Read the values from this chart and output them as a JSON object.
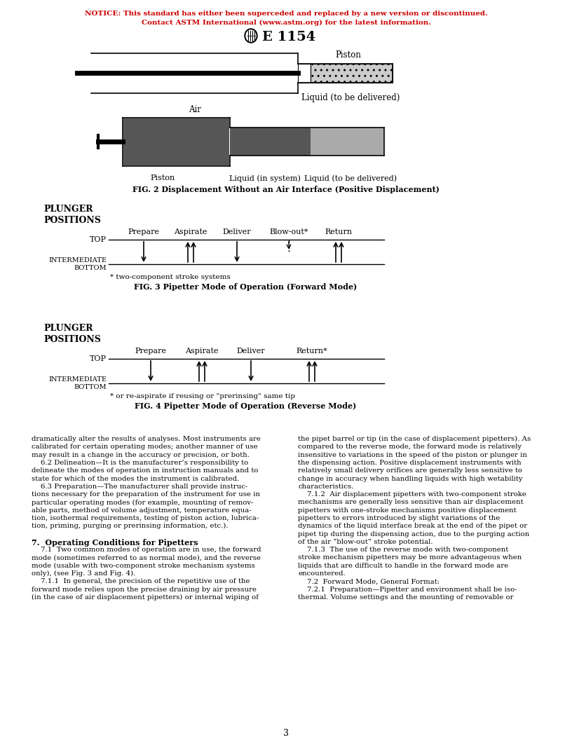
{
  "notice_line1": "NOTICE: This standard has either been superceded and replaced by a new version or discontinued.",
  "notice_line2": "Contact ASTM International (www.astm.org) for the latest information.",
  "notice_color": "#cc0000",
  "title": "E 1154",
  "fig1_label_piston": "Piston",
  "fig1_label_liquid": "Liquid (to be delivered)",
  "fig2_label_air": "Air",
  "fig2_label_piston": "Piston",
  "fig2_label_liquid_sys": "Liquid (in system)",
  "fig2_label_liquid_del": "Liquid (to be delivered)",
  "fig2_caption": "FIG. 2 Displacement Without an Air Interface (Positive Displacement)",
  "fig3_title": "PLUNGER\nPOSITIONS",
  "fig3_caption": "FIG. 3 Pipetter Mode of Operation (Forward Mode)",
  "fig3_steps": [
    "Prepare",
    "Aspirate",
    "Deliver",
    "Blow-out*",
    "Return"
  ],
  "fig3_note": "* two-component stroke systems",
  "fig4_title": "PLUNGER\nPOSITIONS",
  "fig4_caption": "FIG. 4 Pipetter Mode of Operation (Reverse Mode)",
  "fig4_steps": [
    "Prepare",
    "Aspirate",
    "Deliver",
    "Return*"
  ],
  "fig4_note": "* or re-aspirate if reusing or \"prerinsing\" same tip",
  "body_text_col1": [
    "dramatically alter the results of analyses. Most instruments are",
    "calibrated for certain operating modes; another manner of use",
    "may result in a change in the accuracy or precision, or both.",
    "    6.2 Delineation—It is the manufacturer’s responsibility to",
    "delineate the modes of operation in instruction manuals and to",
    "state for which of the modes the instrument is calibrated.",
    "    6.3 Preparation—The manufacturer shall provide instruc-",
    "tions necessary for the preparation of the instrument for use in",
    "particular operating modes (for example, mounting of remov-",
    "able parts, method of volume adjustment, temperature equa-",
    "tion, isothermal requirements, testing of piston action, lubrica-",
    "tion, priming, purging or prerinsing information, etc.).",
    "",
    "7.  Operating Conditions for Pipetters",
    "    7.1  Two common modes of operation are in use, the forward",
    "mode (sometimes referred to as normal mode), and the reverse",
    "mode (usable with two-component stroke mechanism systems",
    "only), (see Fig. 3 and Fig. 4).",
    "    7.1.1  In general, the precision of the repetitive use of the",
    "forward mode relies upon the precise draining by air pressure",
    "(in the case of air displacement pipetters) or internal wiping of"
  ],
  "body_text_col2": [
    "the pipet barrel or tip (in the case of displacement pipetters). As",
    "compared to the reverse mode, the forward mode is relatively",
    "insensitive to variations in the speed of the piston or plunger in",
    "the dispensing action. Positive displacement instruments with",
    "relatively small delivery orifices are generally less sensitive to",
    "change in accuracy when handling liquids with high wetability",
    "characteristics.",
    "    7.1.2  Air displacement pipetters with two-component stroke",
    "mechanisms are generally less sensitive than air displacement",
    "pipetters with one-stroke mechanisms positive displacement",
    "pipetters to errors introduced by slight variations of the",
    "dynamics of the liquid interface break at the end of the pipet or",
    "pipet tip during the dispensing action, due to the purging action",
    "of the air “blow-out” stroke potential.",
    "    7.1.3  The use of the reverse mode with two-component",
    "stroke mechanism pipetters may be more advantageous when",
    "liquids that are difficult to handle in the forward mode are",
    "encountered.",
    "    7.2  Forward Mode, General Format:",
    "    7.2.1  Preparation—Pipetter and environment shall be iso-",
    "thermal. Volume settings and the mounting of removable or"
  ],
  "page_number": "3",
  "bg_color": "#ffffff",
  "text_color": "#000000"
}
